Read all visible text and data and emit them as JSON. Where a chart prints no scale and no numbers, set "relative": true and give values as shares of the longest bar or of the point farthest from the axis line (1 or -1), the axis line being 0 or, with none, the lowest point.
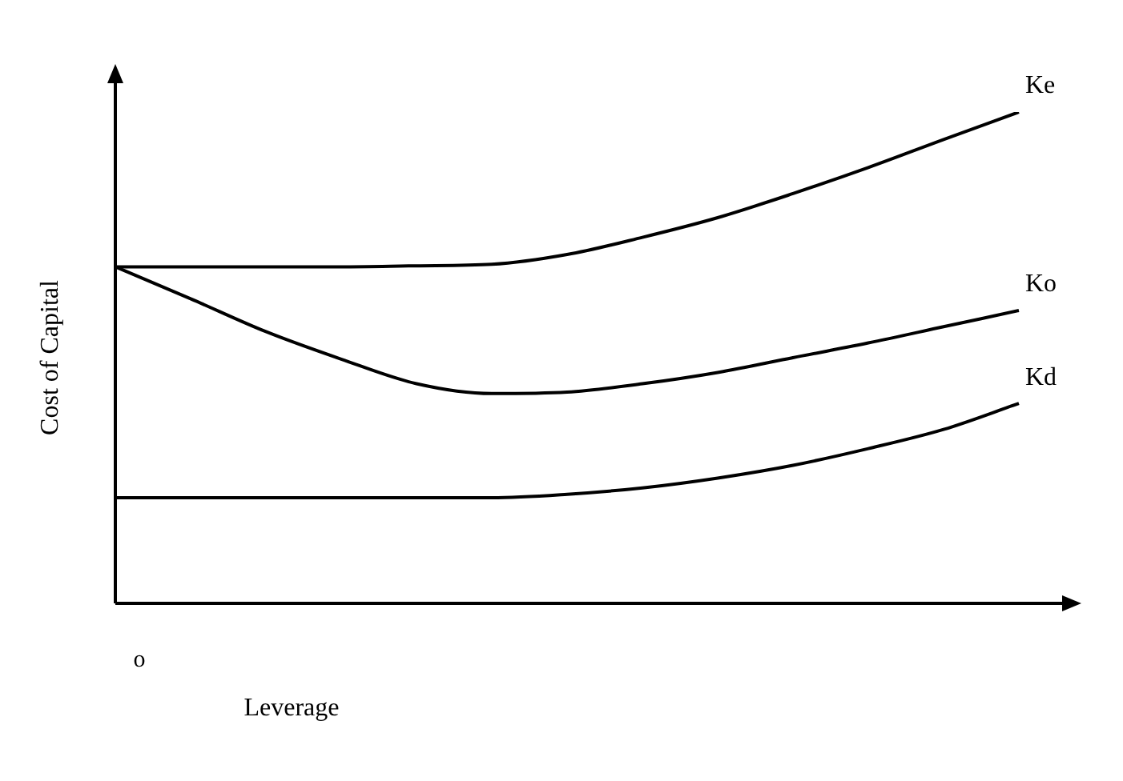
{
  "chart_data": {
    "type": "line",
    "relative": true,
    "xlabel": "Leverage",
    "ylabel": "Cost of Capital",
    "annotations": [
      "o"
    ],
    "legend": false,
    "grid": false,
    "tick_labels": false,
    "marker": "none",
    "line_style": "solid",
    "categories": [
      null,
      null,
      null,
      null,
      null,
      null,
      null,
      null,
      null,
      null,
      null,
      null,
      null
    ],
    "series": [
      {
        "name": "Ke",
        "color": "#000000",
        "values": [
          0.685,
          0.685,
          0.685,
          0.685,
          0.687,
          0.69,
          0.71,
          0.745,
          0.785,
          0.834,
          0.887,
          0.944,
          1
        ]
      },
      {
        "name": "Ko",
        "color": "#000000",
        "values": [
          0.685,
          0.62,
          0.553,
          0.497,
          0.447,
          0.427,
          0.43,
          0.447,
          0.47,
          0.5,
          0.53,
          0.563,
          0.596
        ]
      },
      {
        "name": "Kd",
        "color": "#000000",
        "values": [
          0.215,
          0.215,
          0.215,
          0.215,
          0.215,
          0.215,
          0.222,
          0.235,
          0.255,
          0.281,
          0.315,
          0.354,
          0.407
        ]
      }
    ]
  }
}
